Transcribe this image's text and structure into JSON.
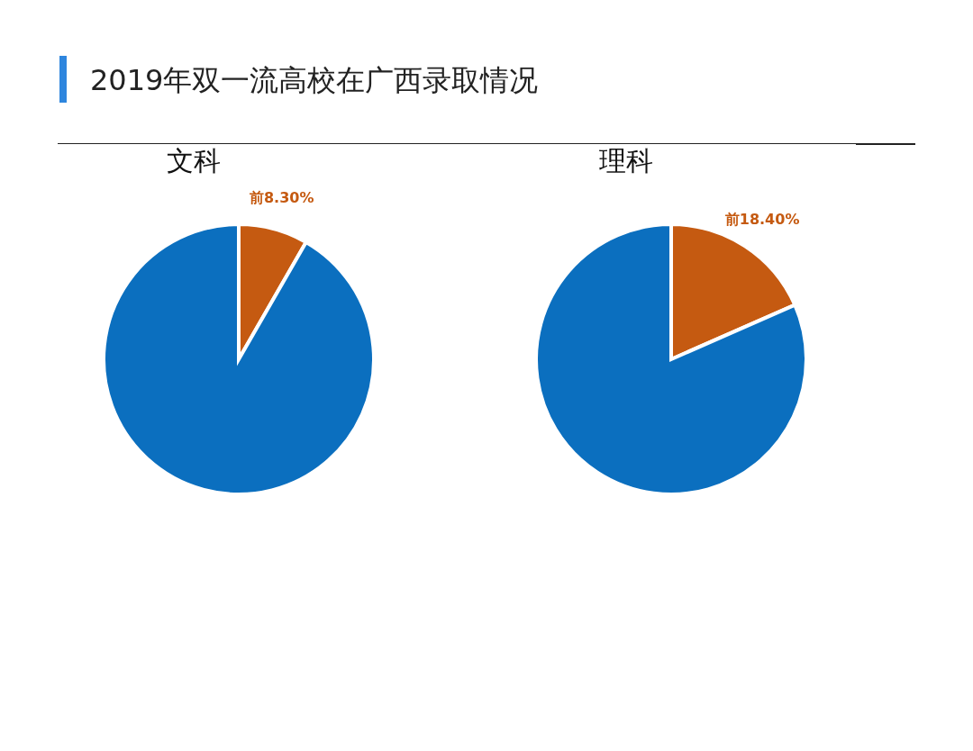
{
  "chart_data": [
    {
      "type": "pie",
      "title": "文科",
      "annotations": [
        "2019年双一流高校在广西录取情况"
      ],
      "categories": [
        null,
        null
      ],
      "values": [
        8.3,
        91.7
      ],
      "colors": [
        "#c55a11",
        "#0b6fbf"
      ],
      "value_labels": [
        "前8.30%",
        null
      ]
    },
    {
      "type": "pie",
      "title": "理科",
      "categories": [
        null,
        null
      ],
      "values": [
        18.4,
        81.6
      ],
      "colors": [
        "#c55a11",
        "#0b6fbf"
      ],
      "value_labels": [
        "前18.40%",
        null
      ]
    }
  ]
}
